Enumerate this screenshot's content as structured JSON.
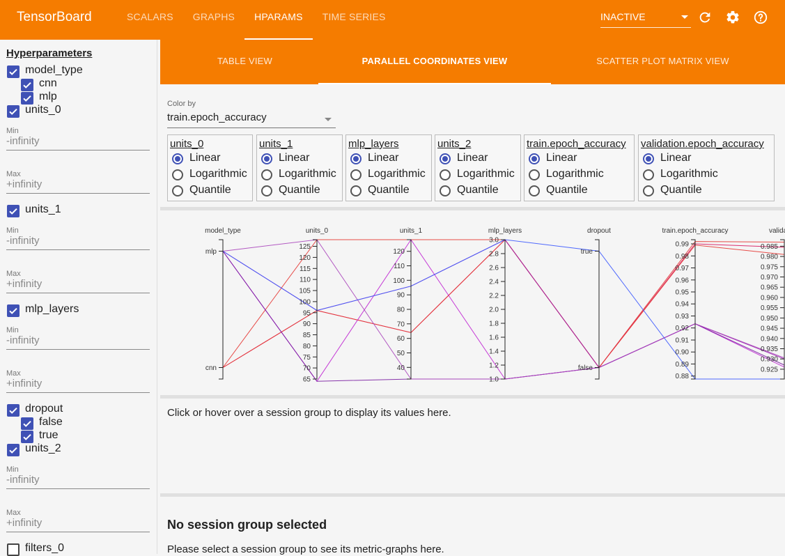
{
  "app": {
    "title": "TensorBoard",
    "tabs": [
      "SCALARS",
      "GRAPHS",
      "HPARAMS",
      "TIME SERIES"
    ],
    "active_tab": "HPARAMS",
    "run_status": "INACTIVE",
    "icons": [
      "refresh-icon",
      "settings-icon",
      "help-icon"
    ]
  },
  "sidebar": {
    "heading": "Hyperparameters",
    "model_type": {
      "label": "model_type",
      "options": [
        "cnn",
        "mlp"
      ]
    },
    "units_0": {
      "label": "units_0",
      "min_label": "Min",
      "min_placeholder": "-infinity",
      "max_label": "Max",
      "max_placeholder": "+infinity"
    },
    "units_1": {
      "label": "units_1",
      "min_label": "Min",
      "min_placeholder": "-infinity",
      "max_label": "Max",
      "max_placeholder": "+infinity"
    },
    "mlp_layers": {
      "label": "mlp_layers",
      "min_label": "Min",
      "min_placeholder": "-infinity",
      "max_label": "Max",
      "max_placeholder": "+infinity"
    },
    "dropout": {
      "label": "dropout",
      "options": [
        "false",
        "true"
      ]
    },
    "units_2": {
      "label": "units_2",
      "min_label": "Min",
      "min_placeholder": "-infinity",
      "max_label": "Max",
      "max_placeholder": "+infinity"
    },
    "filters_0": {
      "label": "filters_0",
      "checked": false
    }
  },
  "views": {
    "tabs": [
      "TABLE VIEW",
      "PARALLEL COORDINATES VIEW",
      "SCATTER PLOT MATRIX VIEW"
    ],
    "active": "PARALLEL COORDINATES VIEW"
  },
  "color_by": {
    "label": "Color by",
    "value": "train.epoch_accuracy"
  },
  "scale_options": [
    "Linear",
    "Logarithmic",
    "Quantile"
  ],
  "scale_columns": [
    {
      "name": "units_0",
      "selected": "Linear"
    },
    {
      "name": "units_1",
      "selected": "Linear"
    },
    {
      "name": "mlp_layers",
      "selected": "Linear"
    },
    {
      "name": "units_2",
      "selected": "Linear"
    },
    {
      "name": "train.epoch_accuracy",
      "selected": "Linear"
    },
    {
      "name": "validation.epoch_accuracy",
      "selected": "Linear"
    }
  ],
  "chart_data": {
    "type": "parallel_coordinates",
    "axes": [
      {
        "name": "model_type",
        "kind": "categorical",
        "categories": [
          "mlp",
          "cnn"
        ]
      },
      {
        "name": "units_0",
        "ticks": [
          "65",
          "70",
          "75",
          "80",
          "85",
          "90",
          "95",
          "100",
          "105",
          "110",
          "115",
          "120",
          "125"
        ],
        "range": [
          65,
          128
        ]
      },
      {
        "name": "units_1",
        "ticks": [
          "40",
          "50",
          "60",
          "70",
          "80",
          "90",
          "100",
          "110",
          "120"
        ],
        "range": [
          32,
          128
        ]
      },
      {
        "name": "mlp_layers",
        "ticks": [
          "1.0",
          "1.2",
          "1.4",
          "1.6",
          "1.8",
          "2.0",
          "2.2",
          "2.4",
          "2.6",
          "2.8",
          "3.0"
        ],
        "range": [
          1.0,
          3.0
        ]
      },
      {
        "name": "dropout",
        "kind": "categorical",
        "categories": [
          "true",
          "false"
        ]
      },
      {
        "name": "train.epoch_accuracy",
        "ticks": [
          "0.88",
          "0.89",
          "0.90",
          "0.91",
          "0.92",
          "0.93",
          "0.94",
          "0.95",
          "0.96",
          "0.97",
          "0.98",
          "0.99"
        ],
        "range": [
          0.8775,
          0.9935
        ]
      },
      {
        "name": "validation.epoch_accuracy",
        "label": "validation.e",
        "ticks": [
          "0.925",
          "0.930",
          "0.935",
          "0.940",
          "0.945",
          "0.950",
          "0.955",
          "0.960",
          "0.965",
          "0.970",
          "0.975",
          "0.980",
          "0.985"
        ],
        "range": [
          0.9202,
          0.9882
        ]
      }
    ],
    "sessions": [
      {
        "color": "#e53935",
        "values": [
          "cnn",
          128,
          128,
          3.0,
          "false",
          0.992,
          0.987
        ]
      },
      {
        "color": "#d81b60",
        "values": [
          "cnn",
          96,
          64,
          3.0,
          "false",
          0.99,
          0.9845
        ]
      },
      {
        "color": "#e53935",
        "values": [
          "cnn",
          96,
          64,
          3.0,
          "false",
          0.989,
          0.981
        ]
      },
      {
        "color": "#9c27b0",
        "values": [
          "mlp",
          96,
          96,
          3.0,
          "false",
          0.9235,
          0.93
        ]
      },
      {
        "color": "#c026d3",
        "values": [
          "mlp",
          64,
          128,
          1.0,
          "false",
          0.9235,
          0.926
        ]
      },
      {
        "color": "#7b1fa2",
        "values": [
          "mlp",
          64,
          32,
          1.0,
          "false",
          0.9235,
          0.927
        ]
      },
      {
        "color": "#ab47bc",
        "values": [
          "mlp",
          128,
          32,
          1.0,
          "false",
          0.9235,
          0.9305
        ]
      },
      {
        "color": "#3d5afe",
        "values": [
          "mlp",
          96,
          96,
          3.0,
          "true",
          0.8775,
          0.9202
        ]
      }
    ]
  },
  "details": {
    "hover_message": "Click or hover over a session group to display its values here.",
    "no_selection_title": "No session group selected",
    "no_selection_text": "Please select a session group to see its metric-graphs here."
  }
}
